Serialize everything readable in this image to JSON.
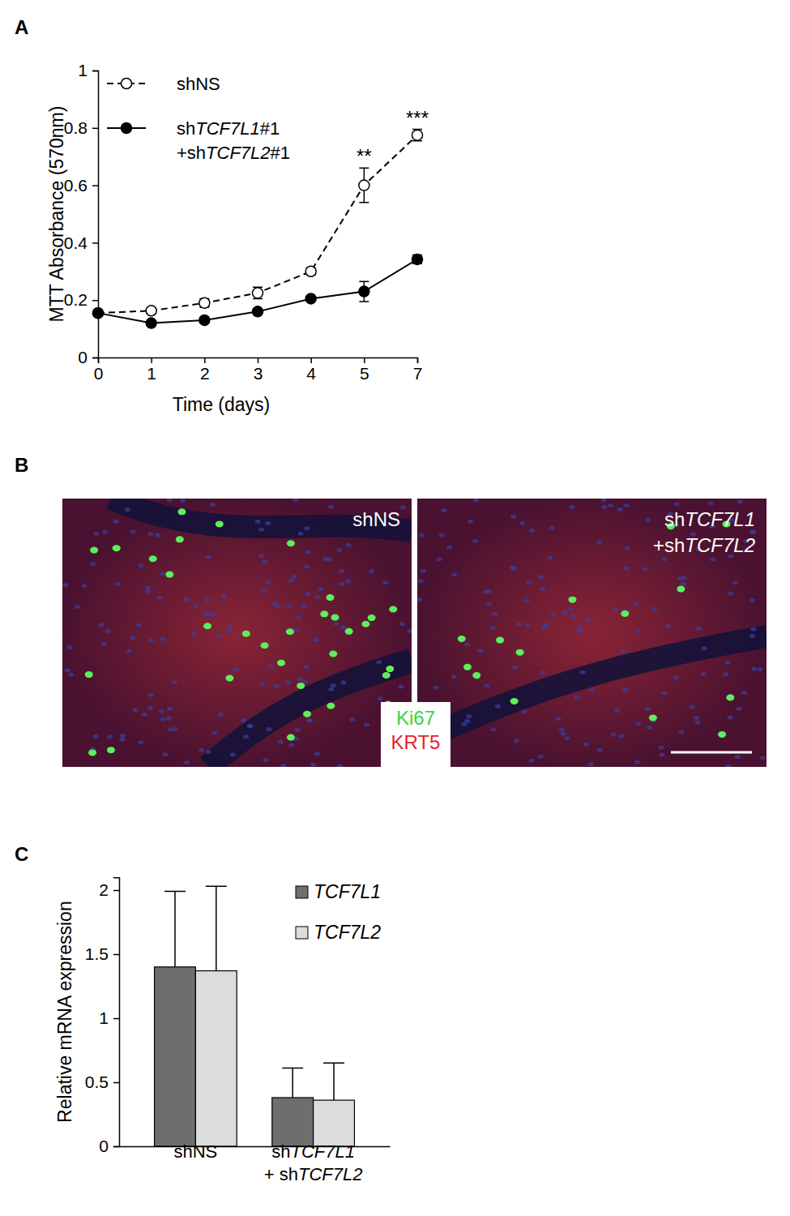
{
  "chart_data": [
    {
      "type": "line",
      "title": "A",
      "x_label": "Time (days)",
      "y_label": "MTT Absorbance (570nm)",
      "categories": [
        "0",
        "1",
        "2",
        "3",
        "4",
        "5",
        "7"
      ],
      "ylim": [
        0,
        1
      ],
      "yticks": [
        0,
        0.2,
        0.4,
        0.6,
        0.8,
        1
      ],
      "legend": "top-left",
      "series": [
        {
          "name": "shNS",
          "color": "#000000",
          "line_style": "dashed",
          "marker": "open-circle",
          "values": [
            0.155,
            0.163,
            0.19,
            0.225,
            0.3,
            0.6,
            0.775
          ],
          "errors": [
            0.005,
            0.01,
            0.015,
            0.02,
            0.012,
            0.06,
            0.02
          ]
        },
        {
          "name": "shTCF7L1#1 +shTCF7L2#1",
          "color": "#000000",
          "line_style": "solid",
          "marker": "filled-circle",
          "values": [
            0.155,
            0.12,
            0.13,
            0.16,
            0.205,
            0.23,
            0.342
          ],
          "errors": [
            0.005,
            0.008,
            0.01,
            0.008,
            0.008,
            0.035,
            0.015
          ]
        }
      ],
      "annotations": [
        {
          "text": "**",
          "category": "5"
        },
        {
          "text": "***",
          "category": "7"
        }
      ]
    },
    {
      "type": "image",
      "title": "B",
      "panels": [
        {
          "label": "shNS"
        },
        {
          "label": "shTCF7L1 +shTCF7L2"
        }
      ],
      "stain_labels": [
        {
          "text": "Ki67",
          "color": "#39d639"
        },
        {
          "text": "KRT5",
          "color": "#e8222c"
        }
      ]
    },
    {
      "type": "bar",
      "title": "C",
      "y_label": "Relative mRNA expression",
      "categories": [
        "shNS",
        "shTCF7L1 + shTCF7L2"
      ],
      "ylim": [
        0,
        2.1
      ],
      "yticks": [
        0,
        0.5,
        1,
        1.5,
        2
      ],
      "legend": "top-right",
      "series": [
        {
          "name": "TCF7L1",
          "color": "#6e6e6e",
          "values": [
            1.4,
            0.38
          ],
          "errors": [
            0.59,
            0.23
          ]
        },
        {
          "name": "TCF7L2",
          "color": "#dcdcdc",
          "values": [
            1.37,
            0.36
          ],
          "errors": [
            0.66,
            0.29
          ]
        }
      ]
    }
  ]
}
